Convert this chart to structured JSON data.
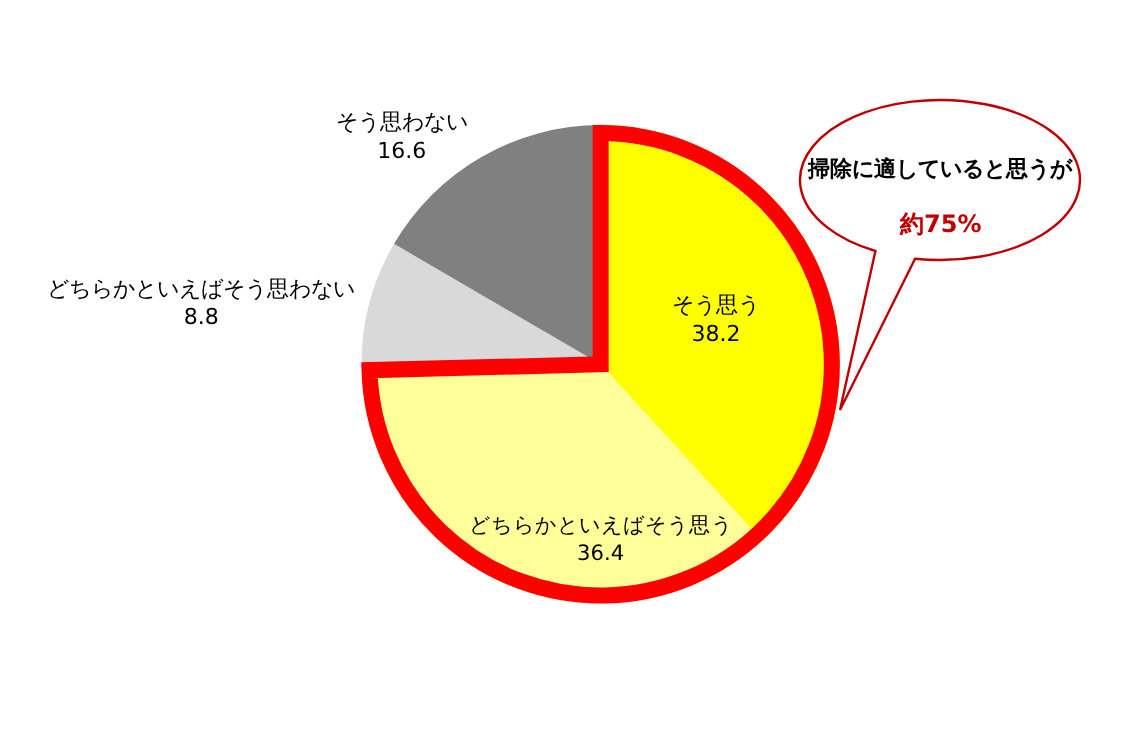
{
  "chart_data": {
    "type": "pie",
    "categories": [
      "そう思う",
      "どちらかといえばそう思う",
      "どちらかといえばそう思わない",
      "そう思わない"
    ],
    "values": [
      38.2,
      36.4,
      8.8,
      16.6
    ],
    "colors": [
      "#ffff00",
      "#ffff99",
      "#d9d9d9",
      "#808080"
    ],
    "data_labels": true,
    "annotations": [
      "掃除に適していると思うが",
      "約75%"
    ]
  }
}
